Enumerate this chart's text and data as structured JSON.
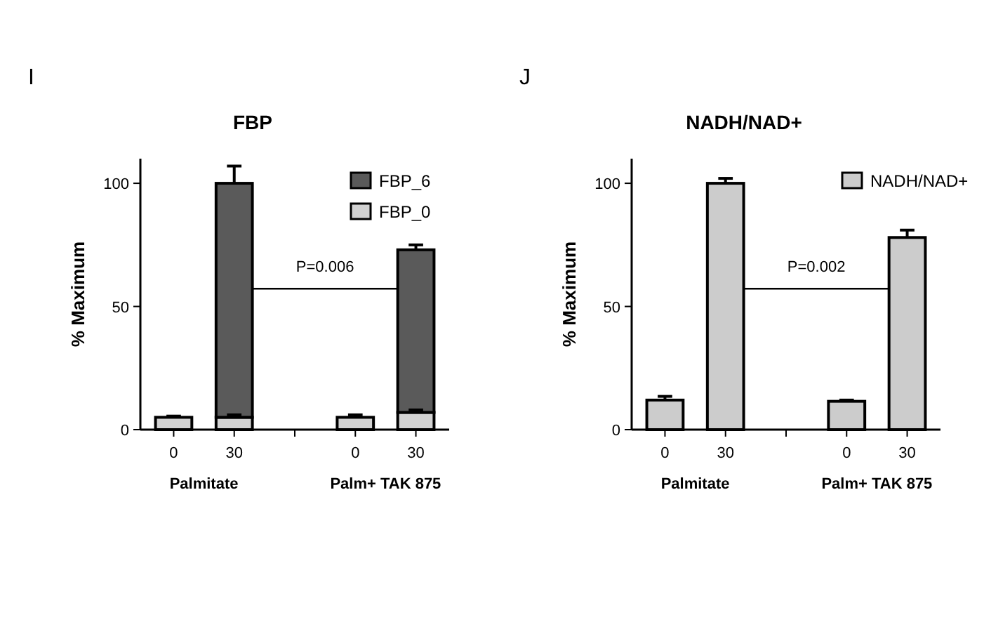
{
  "chart_data": [
    {
      "type": "bar",
      "title": "FBP",
      "ylabel": "% Maximum",
      "categories": [
        "0",
        "30",
        null,
        "0",
        "30"
      ],
      "stacked": true,
      "ylim": [
        0,
        110
      ],
      "yticks": [
        0,
        50,
        100
      ],
      "grid": false,
      "legend": "top right",
      "series": [
        {
          "name": "FBP_0",
          "color": "#d2d2d2",
          "values": [
            5,
            5,
            null,
            5,
            7
          ],
          "errors": [
            0.5,
            1,
            null,
            1,
            1
          ]
        },
        {
          "name": "FBP_6",
          "color": "#5a5a5a",
          "values": [
            null,
            95,
            null,
            null,
            66
          ],
          "errors": [
            null,
            7,
            null,
            null,
            2
          ]
        }
      ],
      "annotations": [
        "I",
        "Palmitate",
        "Palm+ TAK 875",
        "P=0.006"
      ]
    },
    {
      "type": "bar",
      "title": "NADH/NAD+",
      "ylabel": "% Maximum",
      "categories": [
        "0",
        "30",
        null,
        "0",
        "30"
      ],
      "ylim": [
        0,
        110
      ],
      "yticks": [
        0,
        50,
        100
      ],
      "grid": false,
      "legend": "top right",
      "series": [
        {
          "name": "NADH/NAD+",
          "color": "#cccccc",
          "values": [
            12,
            100,
            null,
            11.5,
            78
          ],
          "errors": [
            1.5,
            2,
            null,
            0.5,
            3
          ]
        }
      ],
      "annotations": [
        "J",
        "Palmitate",
        "Palm+ TAK 875",
        "P=0.002"
      ]
    }
  ]
}
